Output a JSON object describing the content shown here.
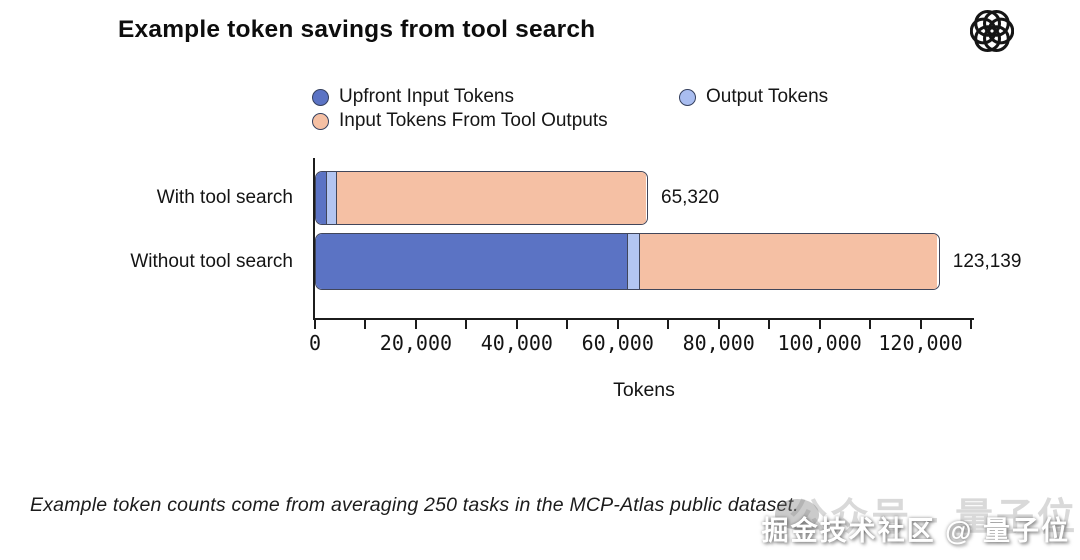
{
  "header": {
    "title": "Example token savings from tool search",
    "logo_icon": "openai-logo"
  },
  "legend": {
    "items": [
      {
        "label": "Upfront Input Tokens",
        "color": "#5b73c4"
      },
      {
        "label": "Output Tokens",
        "color": "#a9bdf0"
      },
      {
        "label": "Input Tokens From Tool Outputs",
        "color": "#f5c0a4"
      }
    ]
  },
  "chart_data": {
    "type": "bar",
    "orientation": "horizontal",
    "stacked": true,
    "categories": [
      "With tool search",
      "Without tool search"
    ],
    "series": [
      {
        "name": "Upfront Input Tokens",
        "color": "#5b73c4",
        "values": [
          2000,
          61639
        ]
      },
      {
        "name": "Output Tokens",
        "color": "#b3c5f1",
        "values": [
          2000,
          2400
        ]
      },
      {
        "name": "Input Tokens From Tool Outputs",
        "color": "#f5c0a4",
        "values": [
          61320,
          59100
        ]
      }
    ],
    "totals": [
      65320,
      123139
    ],
    "totals_display": [
      "65,320",
      "123,139"
    ],
    "xlabel": "Tokens",
    "xlim": [
      0,
      130000
    ],
    "minor_tick_step": 10000,
    "x_tick_labels": [
      "0",
      "20,000",
      "40,000",
      "60,000",
      "80,000",
      "100,000",
      "120,000"
    ],
    "grid": false,
    "legend_position": "top",
    "segment_edge_color": "#41465a"
  },
  "footnote": "Example token counts come from averaging 250 tasks in the MCP-Atlas public dataset.",
  "watermark": {
    "white_text": "掘金技术社区 @ 量子位",
    "ghost_text": "公众号 - 量子位"
  }
}
